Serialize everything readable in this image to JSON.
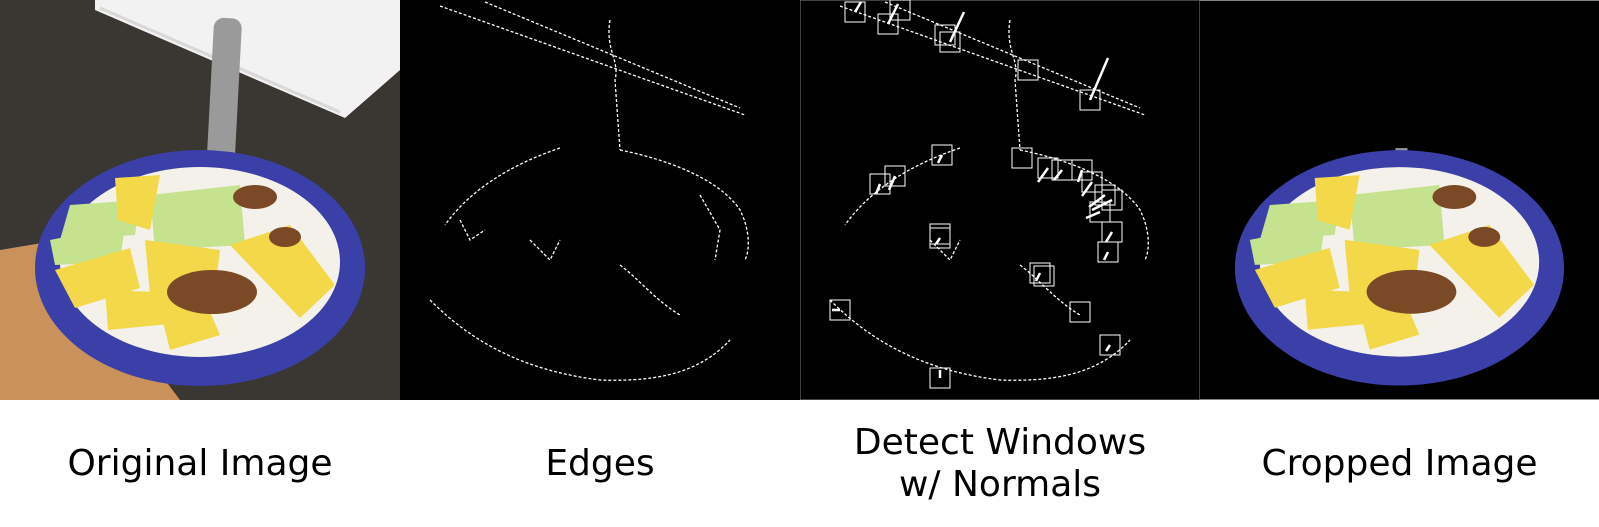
{
  "panels": [
    {
      "caption_lines": [
        "Original Image"
      ]
    },
    {
      "caption_lines": [
        "Edges"
      ]
    },
    {
      "caption_lines": [
        "Detect Windows",
        "w/ Normals"
      ]
    },
    {
      "caption_lines": [
        "Cropped Image"
      ]
    }
  ],
  "colors": {
    "background": "#ffffff",
    "panel_black": "#000000",
    "bowl_blue": "#3b3fa8",
    "table_dark": "#3a3632",
    "table_wood": "#c8925a",
    "pineapple": "#f3d84a",
    "melon": "#c5e38f",
    "granola": "#7a4a26",
    "yogurt": "#f4f1ea",
    "edge_white": "#ffffff"
  },
  "icons": [
    "fruit-bowl-photo",
    "edge-map",
    "detection-window",
    "normal-vector"
  ]
}
